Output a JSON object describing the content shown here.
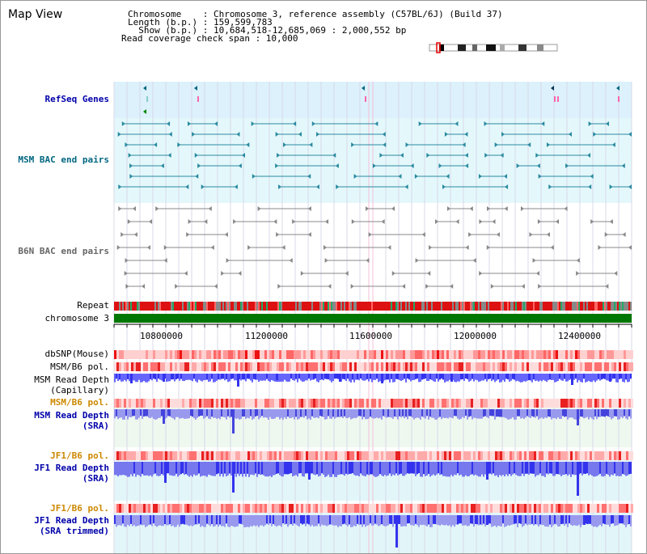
{
  "page": {
    "title": "Map View"
  },
  "info": {
    "chromosome": "Chromosome    : Chromosome 3, reference assembly (C57BL/6J) (Build 37)",
    "length": "Length (b.p.) : 159,599,783",
    "show": "  Show (b.p.) : 10,684,518-12,685,069 : 2,000,552 bp",
    "coverage": "Read coverage check span : 10,000"
  },
  "tracks": {
    "refseq": "RefSeq Genes",
    "msm_bac": "MSM BAC end pairs",
    "b6n_bac": "B6N BAC end pairs",
    "repeat": "Repeat",
    "chromosome": "chromosome 3",
    "dbsnp": "dbSNP(Mouse)",
    "msm_b6_pol": "MSM/B6 pol.",
    "msm_read_depth_l1": "MSM Read Depth",
    "msm_read_depth_l2": "(Capillary)",
    "msm_b6_pol_2": "MSM/B6 pol.",
    "msm_sra_l1": "MSM Read Depth",
    "msm_sra_l2": "(SRA)",
    "jf1_b6_pol": "JF1/B6 pol.",
    "jf1_sra_l1": "JF1 Read Depth",
    "jf1_sra_l2": "(SRA)",
    "jf1_b6_pol_2": "JF1/B6 pol.",
    "jf1_trim_l1": "JF1 Read Depth",
    "jf1_trim_l2": "(SRA trimmed)"
  },
  "axis": {
    "ticks": [
      "10800000",
      "11200000",
      "11600000",
      "12000000",
      "12400000"
    ]
  },
  "colors": {
    "link_blue": "#0000aa",
    "orange": "#cc8800",
    "bac_teal": "#006680",
    "gray": "#666666"
  }
}
